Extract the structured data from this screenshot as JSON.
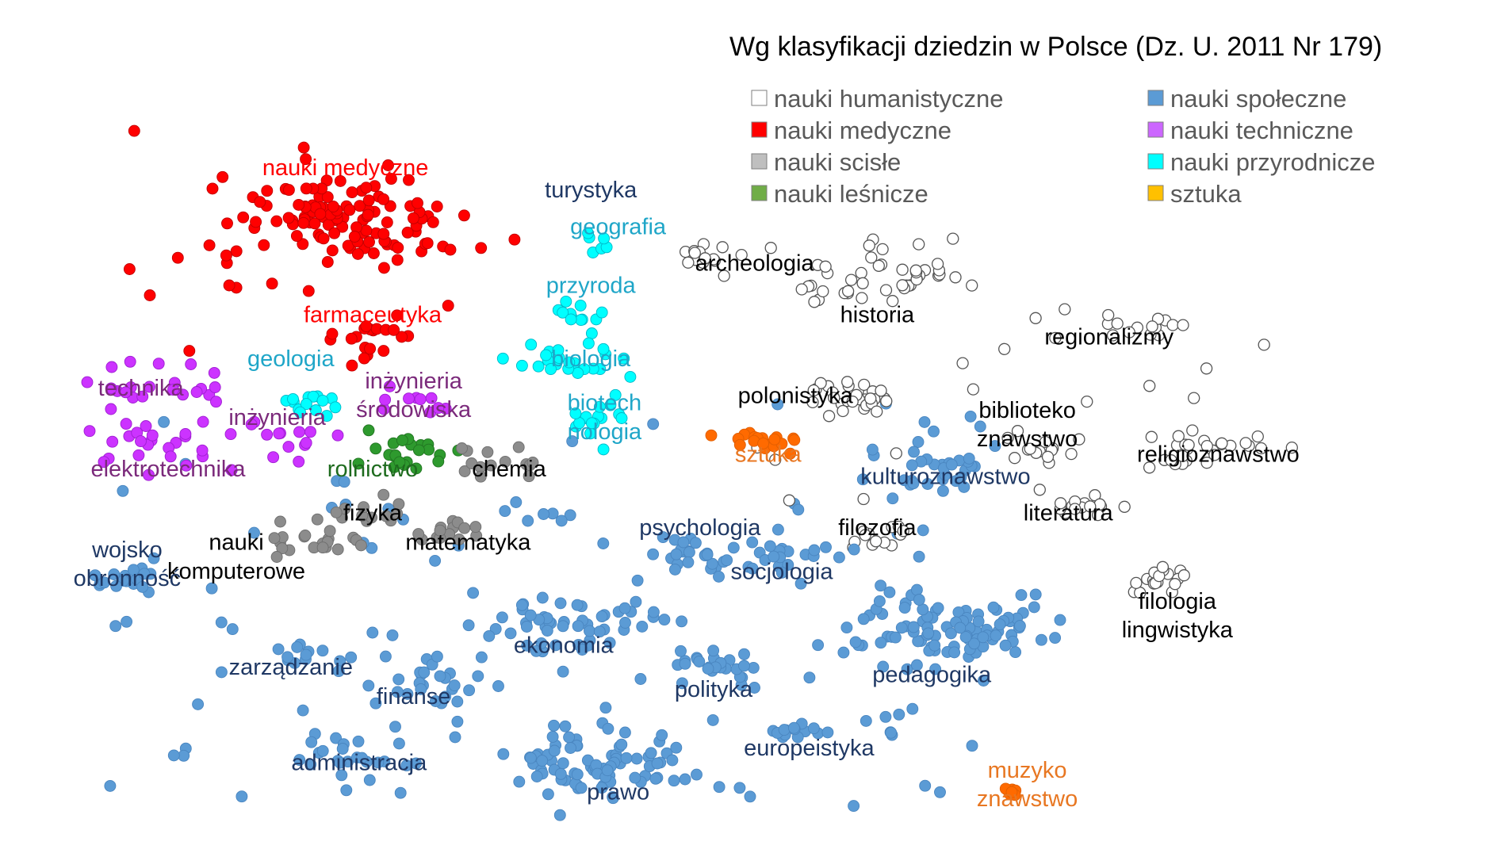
{
  "chart_data": {
    "type": "scatter",
    "title": "Wg klasyfikacji dziedzin w Polsce (Dz. U. 2011 Nr 179)",
    "xlabel": "",
    "ylabel": "",
    "grid": false,
    "legend_position": "top-right",
    "series": [
      {
        "key": "hum",
        "name": "nauki humanistyczne",
        "color": "#ffffff",
        "stroke": "#555555",
        "legend_color": "#ffffff"
      },
      {
        "key": "med",
        "name": "nauki medyczne",
        "color": "#ff0000",
        "stroke": "#c00000",
        "legend_color": "#ff0000"
      },
      {
        "key": "sci",
        "name": "nauki scisłe",
        "color": "#8c8c8c",
        "stroke": "#6e6e6e",
        "legend_color": "#bfbfbf"
      },
      {
        "key": "les",
        "name": "nauki leśnicze",
        "color": "#2e9a2e",
        "stroke": "#227522",
        "legend_color": "#70ad47"
      },
      {
        "key": "spo",
        "name": "nauki społeczne",
        "color": "#5b9bd5",
        "stroke": "#4a86c0",
        "legend_color": "#5b9bd5"
      },
      {
        "key": "tec",
        "name": "nauki techniczne",
        "color": "#cc33ff",
        "stroke": "#9e1fd1",
        "legend_color": "#cc66ff"
      },
      {
        "key": "prz",
        "name": "nauki przyrodnicze",
        "color": "#00ffff",
        "stroke": "#00b8c8",
        "legend_color": "#00ffff"
      },
      {
        "key": "szt",
        "name": "sztuka",
        "color": "#ff6a00",
        "stroke": "#e05e00",
        "legend_color": "#ffc000"
      }
    ],
    "clusters": [
      {
        "label": [
          "nauki medyczne"
        ],
        "series": "med",
        "x": 0.23,
        "y": 0.74,
        "spread": 0.045,
        "n": 120,
        "label_x": 0.23,
        "label_y": 0.8,
        "label_color": "#ff0000",
        "label_size": 1.25
      },
      {
        "label": [
          "farmaceutyka"
        ],
        "series": "med",
        "x": 0.25,
        "y": 0.58,
        "spread": 0.018,
        "n": 18,
        "label_x": 0.25,
        "label_y": 0.6,
        "label_color": "#ff0000",
        "label_size": 1.0
      },
      {
        "label": [
          "technika"
        ],
        "series": "tec",
        "x": 0.1,
        "y": 0.51,
        "spread": 0.025,
        "n": 22,
        "label_x": 0.08,
        "label_y": 0.5,
        "label_color": "#7b2a7b",
        "label_size": 1.15
      },
      {
        "label": [
          "elektrotechnika"
        ],
        "series": "tec",
        "x": 0.09,
        "y": 0.43,
        "spread": 0.03,
        "n": 24,
        "label_x": 0.1,
        "label_y": 0.39,
        "label_color": "#7b2a7b",
        "label_size": 1.0
      },
      {
        "label": [
          "inżynieria"
        ],
        "series": "tec",
        "x": 0.17,
        "y": 0.44,
        "spread": 0.02,
        "n": 14,
        "label_x": 0.18,
        "label_y": 0.46,
        "label_color": "#7b2a7b",
        "label_size": 1.0
      },
      {
        "label": [
          "inżynieria",
          "środowiska"
        ],
        "series": "tec",
        "x": 0.28,
        "y": 0.49,
        "spread": 0.015,
        "n": 10,
        "label_x": 0.28,
        "label_y": 0.51,
        "label_color": "#7b2a7b",
        "label_size": 1.0
      },
      {
        "label": [
          "geologia"
        ],
        "series": "prz",
        "x": 0.2,
        "y": 0.49,
        "spread": 0.015,
        "n": 14,
        "label_x": 0.19,
        "label_y": 0.54,
        "label_color": "#1fa6c8",
        "label_size": 1.0
      },
      {
        "label": [
          "rolnictwo"
        ],
        "series": "les",
        "x": 0.27,
        "y": 0.42,
        "spread": 0.02,
        "n": 22,
        "label_x": 0.25,
        "label_y": 0.39,
        "label_color": "#1e6b1e",
        "label_size": 1.0
      },
      {
        "label": [
          "chemia"
        ],
        "series": "sci",
        "x": 0.34,
        "y": 0.41,
        "spread": 0.015,
        "n": 14,
        "label_x": 0.35,
        "label_y": 0.39,
        "label_color": "#000000",
        "label_size": 1.0
      },
      {
        "label": [
          "fizyka"
        ],
        "series": "sci",
        "x": 0.25,
        "y": 0.34,
        "spread": 0.015,
        "n": 12,
        "label_x": 0.25,
        "label_y": 0.33,
        "label_color": "#000000",
        "label_size": 1.0
      },
      {
        "label": [
          "matematyka"
        ],
        "series": "sci",
        "x": 0.31,
        "y": 0.31,
        "spread": 0.015,
        "n": 14,
        "label_x": 0.32,
        "label_y": 0.29,
        "label_color": "#000000",
        "label_size": 1.0
      },
      {
        "label": [
          "nauki",
          "komputerowe"
        ],
        "series": "sci",
        "x": 0.2,
        "y": 0.3,
        "spread": 0.018,
        "n": 22,
        "label_x": 0.15,
        "label_y": 0.29,
        "label_color": "#000000",
        "label_size": 1.0
      },
      {
        "label": [
          "turystyka"
        ],
        "series": "spo",
        "x": 0.41,
        "y": 0.76,
        "spread": 0.005,
        "n": 0,
        "label_x": 0.41,
        "label_y": 0.77,
        "label_color": "#1f3864",
        "label_size": 1.0
      },
      {
        "label": [
          "geografia"
        ],
        "series": "prz",
        "x": 0.41,
        "y": 0.71,
        "spread": 0.01,
        "n": 6,
        "label_x": 0.43,
        "label_y": 0.72,
        "label_color": "#1fa6c8",
        "label_size": 1.0
      },
      {
        "label": [
          "przyroda"
        ],
        "series": "prz",
        "x": 0.4,
        "y": 0.62,
        "spread": 0.015,
        "n": 12,
        "label_x": 0.41,
        "label_y": 0.64,
        "label_color": "#1fa6c8",
        "label_size": 1.0
      },
      {
        "label": [
          "biologia"
        ],
        "series": "prz",
        "x": 0.39,
        "y": 0.55,
        "spread": 0.02,
        "n": 24,
        "label_x": 0.41,
        "label_y": 0.54,
        "label_color": "#1fa6c8",
        "label_size": 1.0
      },
      {
        "label": [
          "biotech",
          "nologia"
        ],
        "series": "prz",
        "x": 0.41,
        "y": 0.47,
        "spread": 0.02,
        "n": 16,
        "label_x": 0.42,
        "label_y": 0.48,
        "label_color": "#1fa6c8",
        "label_size": 1.0
      },
      {
        "label": [
          "sztuka"
        ],
        "series": "szt",
        "x": 0.54,
        "y": 0.44,
        "spread": 0.012,
        "n": 20,
        "label_x": 0.54,
        "label_y": 0.41,
        "label_color": "#e87722",
        "label_size": 1.0
      },
      {
        "label": [
          "archeologia"
        ],
        "series": "hum",
        "x": 0.49,
        "y": 0.69,
        "spread": 0.012,
        "n": 14,
        "label_x": 0.53,
        "label_y": 0.67,
        "label_color": "#000000",
        "label_size": 1.0
      },
      {
        "label": [
          "historia"
        ],
        "series": "hum",
        "x": 0.62,
        "y": 0.66,
        "spread": 0.03,
        "n": 40,
        "label_x": 0.62,
        "label_y": 0.6,
        "label_color": "#000000",
        "label_size": 1.0
      },
      {
        "label": [
          "polonistyka"
        ],
        "series": "hum",
        "x": 0.6,
        "y": 0.5,
        "spread": 0.018,
        "n": 30,
        "label_x": 0.56,
        "label_y": 0.49,
        "label_color": "#000000",
        "label_size": 1.0
      },
      {
        "label": [
          "regionalizmy"
        ],
        "series": "hum",
        "x": 0.8,
        "y": 0.6,
        "spread": 0.02,
        "n": 16,
        "label_x": 0.79,
        "label_y": 0.57,
        "label_color": "#000000",
        "label_size": 1.0
      },
      {
        "label": [
          "biblioteko",
          "znawstwo"
        ],
        "series": "hum",
        "x": 0.74,
        "y": 0.43,
        "spread": 0.015,
        "n": 14,
        "label_x": 0.73,
        "label_y": 0.47,
        "label_color": "#000000",
        "label_size": 1.0
      },
      {
        "label": [
          "religioznawstwo"
        ],
        "series": "hum",
        "x": 0.86,
        "y": 0.43,
        "spread": 0.02,
        "n": 28,
        "label_x": 0.87,
        "label_y": 0.41,
        "label_color": "#000000",
        "label_size": 1.0
      },
      {
        "label": [
          "literatura"
        ],
        "series": "hum",
        "x": 0.77,
        "y": 0.35,
        "spread": 0.012,
        "n": 12,
        "label_x": 0.76,
        "label_y": 0.33,
        "label_color": "#000000",
        "label_size": 1.0
      },
      {
        "label": [
          "filozofia"
        ],
        "series": "hum",
        "x": 0.62,
        "y": 0.31,
        "spread": 0.012,
        "n": 14,
        "label_x": 0.62,
        "label_y": 0.31,
        "label_color": "#000000",
        "label_size": 1.0
      },
      {
        "label": [
          "filologia",
          "lingwistyka"
        ],
        "series": "hum",
        "x": 0.83,
        "y": 0.25,
        "spread": 0.018,
        "n": 18,
        "label_x": 0.84,
        "label_y": 0.21,
        "label_color": "#000000",
        "label_size": 1.0
      },
      {
        "label": [
          "kulturoznawstwo"
        ],
        "series": "spo",
        "x": 0.66,
        "y": 0.4,
        "spread": 0.025,
        "n": 30,
        "label_x": 0.67,
        "label_y": 0.38,
        "label_color": "#1f3864",
        "label_size": 1.0
      },
      {
        "label": [
          "psychologia"
        ],
        "series": "spo",
        "x": 0.48,
        "y": 0.28,
        "spread": 0.02,
        "n": 24,
        "label_x": 0.49,
        "label_y": 0.31,
        "label_color": "#1f3864",
        "label_size": 1.0
      },
      {
        "label": [
          "socjologia"
        ],
        "series": "spo",
        "x": 0.55,
        "y": 0.28,
        "spread": 0.018,
        "n": 18,
        "label_x": 0.55,
        "label_y": 0.25,
        "label_color": "#1f3864",
        "label_size": 1.0
      },
      {
        "label": [
          "pedagogika"
        ],
        "series": "spo",
        "x": 0.67,
        "y": 0.18,
        "spread": 0.035,
        "n": 80,
        "label_x": 0.66,
        "label_y": 0.11,
        "label_color": "#1f3864",
        "label_size": 1.0
      },
      {
        "label": [
          "polityka"
        ],
        "series": "spo",
        "x": 0.5,
        "y": 0.13,
        "spread": 0.02,
        "n": 26,
        "label_x": 0.5,
        "label_y": 0.09,
        "label_color": "#1f3864",
        "label_size": 1.0
      },
      {
        "label": [
          "ekonomia"
        ],
        "series": "spo",
        "x": 0.39,
        "y": 0.19,
        "spread": 0.03,
        "n": 50,
        "label_x": 0.39,
        "label_y": 0.15,
        "label_color": "#1f3864",
        "label_size": 1.0
      },
      {
        "label": [
          "europeistyka"
        ],
        "series": "spo",
        "x": 0.56,
        "y": 0.04,
        "spread": 0.012,
        "n": 14,
        "label_x": 0.57,
        "label_y": 0.01,
        "label_color": "#1f3864",
        "label_size": 1.0
      },
      {
        "label": [
          "prawo"
        ],
        "series": "spo",
        "x": 0.41,
        "y": 0.0,
        "spread": 0.035,
        "n": 80,
        "label_x": 0.43,
        "label_y": -0.05,
        "label_color": "#1f3864",
        "label_size": 1.0
      },
      {
        "label": [
          "zarządzanie"
        ],
        "series": "spo",
        "x": 0.2,
        "y": 0.15,
        "spread": 0.015,
        "n": 12,
        "label_x": 0.19,
        "label_y": 0.12,
        "label_color": "#1f3864",
        "label_size": 1.0
      },
      {
        "label": [
          "finanse"
        ],
        "series": "spo",
        "x": 0.3,
        "y": 0.11,
        "spread": 0.025,
        "n": 26,
        "label_x": 0.28,
        "label_y": 0.08,
        "label_color": "#1f3864",
        "label_size": 1.0
      },
      {
        "label": [
          "administracja"
        ],
        "series": "spo",
        "x": 0.24,
        "y": 0.0,
        "spread": 0.02,
        "n": 18,
        "label_x": 0.24,
        "label_y": -0.01,
        "label_color": "#1f3864",
        "label_size": 1.0
      },
      {
        "label": [
          "wojsko",
          "obronność"
        ],
        "series": "spo",
        "x": 0.07,
        "y": 0.25,
        "spread": 0.012,
        "n": 18,
        "label_x": 0.07,
        "label_y": 0.28,
        "label_color": "#1f3864",
        "label_size": 1.0
      },
      {
        "label": [
          "muzyko",
          "znawstwo"
        ],
        "series": "szt",
        "x": 0.72,
        "y": -0.04,
        "spread": 0.004,
        "n": 8,
        "label_x": 0.73,
        "label_y": -0.02,
        "label_color": "#e87722",
        "label_size": 1.0
      }
    ],
    "scattered": [
      {
        "series": "spo",
        "n": 110,
        "x_range": [
          0.05,
          0.7
        ],
        "y_range": [
          -0.06,
          0.5
        ]
      },
      {
        "series": "med",
        "n": 14,
        "x_range": [
          0.06,
          0.34
        ],
        "y_range": [
          0.56,
          0.87
        ]
      },
      {
        "series": "hum",
        "n": 22,
        "x_range": [
          0.53,
          0.92
        ],
        "y_range": [
          0.34,
          0.72
        ]
      },
      {
        "series": "spo",
        "n": 10,
        "x_range": [
          0.68,
          0.74
        ],
        "y_range": [
          0.14,
          0.23
        ]
      }
    ]
  }
}
